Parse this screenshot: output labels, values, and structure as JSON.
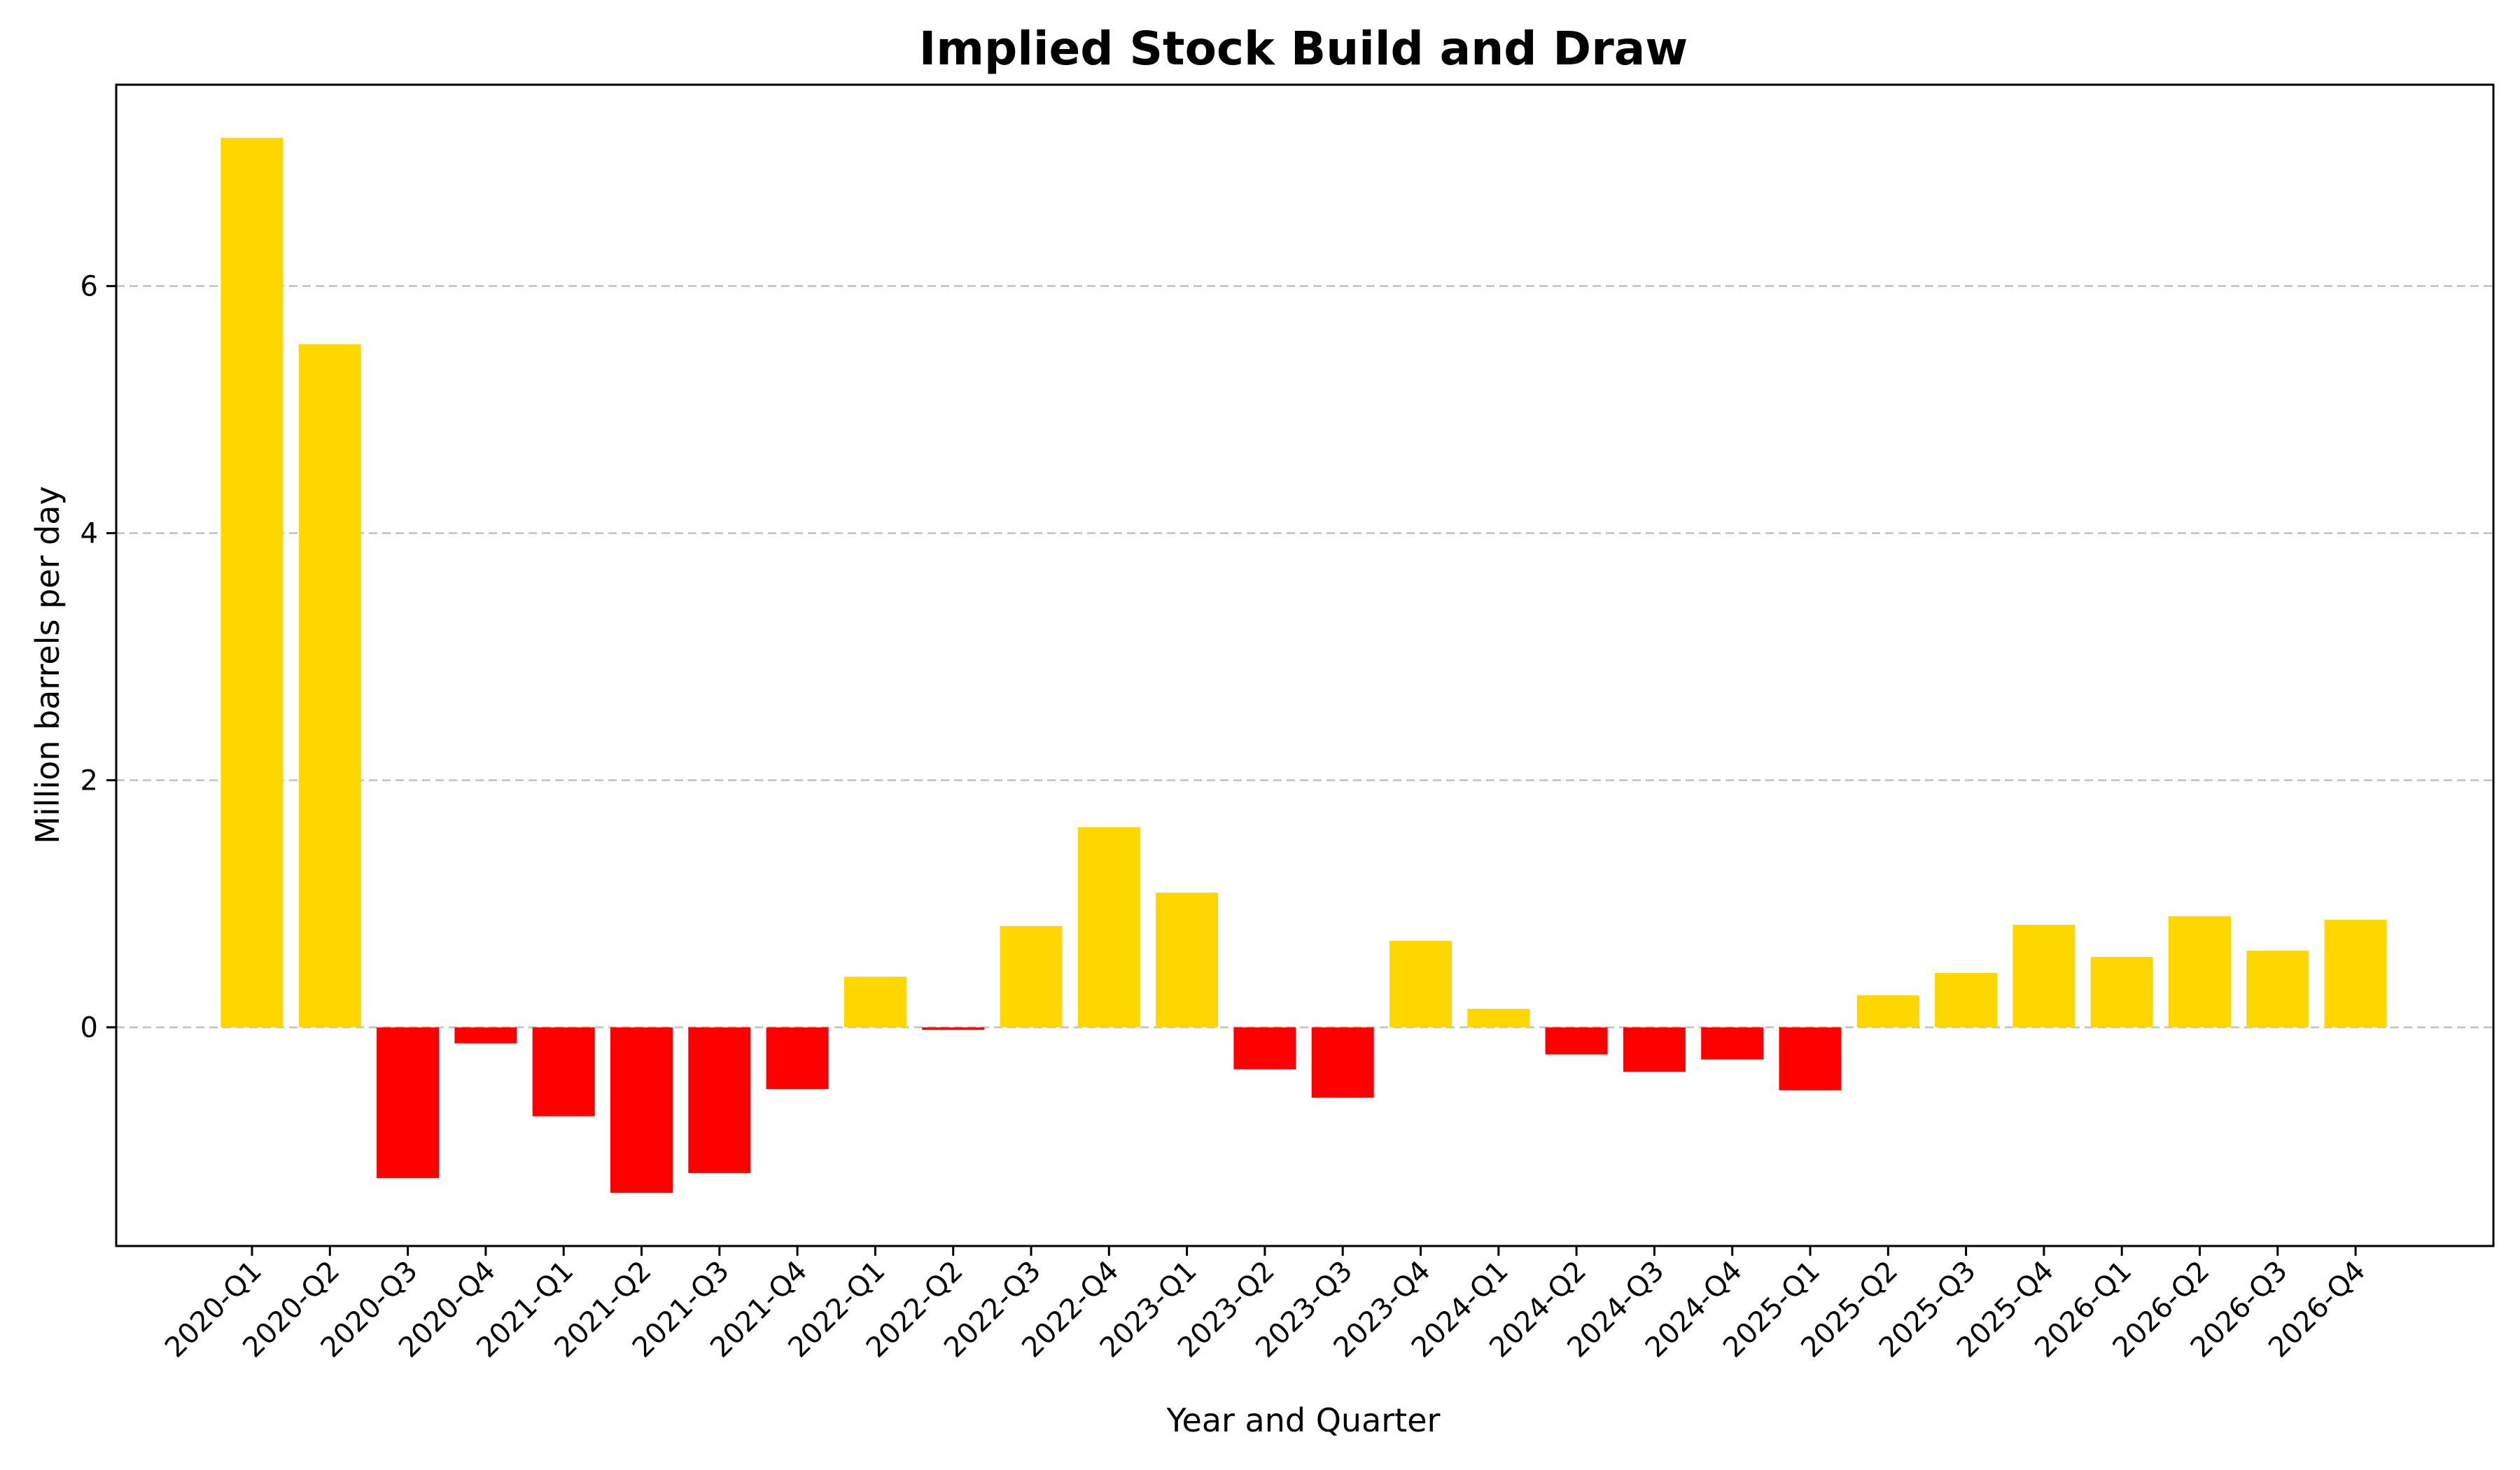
{
  "chart_data": {
    "type": "bar",
    "title": "Implied Stock Build and Draw",
    "xlabel": "Year and Quarter",
    "ylabel": "Million barrels per day",
    "categories": [
      "2020-Q1",
      "2020-Q2",
      "2020-Q3",
      "2020-Q4",
      "2021-Q1",
      "2021-Q2",
      "2021-Q3",
      "2021-Q4",
      "2022-Q1",
      "2022-Q2",
      "2022-Q3",
      "2022-Q4",
      "2023-Q1",
      "2023-Q2",
      "2023-Q3",
      "2023-Q4",
      "2024-Q1",
      "2024-Q2",
      "2024-Q3",
      "2024-Q4",
      "2025-Q1",
      "2025-Q2",
      "2025-Q3",
      "2025-Q4",
      "2026-Q1",
      "2026-Q2",
      "2026-Q3",
      "2026-Q4"
    ],
    "values": [
      7.2,
      5.53,
      -1.22,
      -0.13,
      -0.72,
      -1.34,
      -1.18,
      -0.5,
      0.41,
      -0.02,
      0.82,
      1.62,
      1.09,
      -0.34,
      -0.57,
      0.7,
      0.15,
      -0.22,
      -0.36,
      -0.26,
      -0.51,
      0.26,
      0.44,
      0.83,
      0.57,
      0.9,
      0.62,
      0.87
    ],
    "ylim": [
      -1.77,
      7.63
    ],
    "yticks": [
      0,
      2,
      4,
      6
    ],
    "grid": "horizontal dashed",
    "colors": {
      "build": "#FFD700",
      "draw": "#FF0000"
    }
  }
}
